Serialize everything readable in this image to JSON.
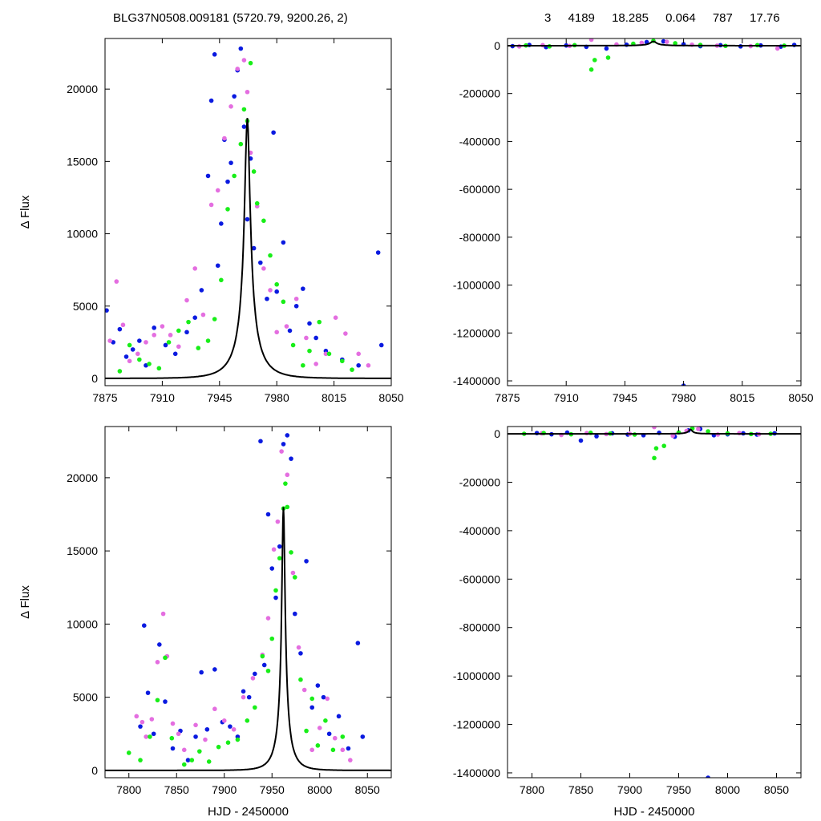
{
  "header": {
    "left": "BLG37N0508.009181 (5720.79, 9200.26,    2)",
    "right_values": [
      "3",
      "4189",
      "18.285",
      "0.064",
      "787",
      "17.76"
    ]
  },
  "colors": {
    "blue": "#0a1ae0",
    "green": "#18ee18",
    "magenta": "#e46ee0",
    "model": "#000000"
  },
  "model": {
    "t0": 7962,
    "amplitude": 18000,
    "tE": 15,
    "u0": 0.11
  },
  "chart_data": [
    {
      "type": "scatter",
      "panel": "top-left",
      "xlabel": "",
      "ylabel": "Δ Flux",
      "xlim": [
        7875,
        8050
      ],
      "ylim": [
        -500,
        23500
      ],
      "xticks": [
        "7875",
        "7910",
        "7945",
        "7980",
        "8015",
        "8050"
      ],
      "yticks": [
        "0",
        "5000",
        "10000",
        "15000",
        "20000"
      ],
      "series": [
        {
          "color": "blue",
          "x": [
            7876,
            7880,
            7884,
            7888,
            7892,
            7896,
            7900,
            7905,
            7912,
            7918,
            7925,
            7930,
            7934,
            7938,
            7940,
            7942,
            7944,
            7946,
            7948,
            7950,
            7952,
            7954,
            7956,
            7958,
            7960,
            7962,
            7964,
            7966,
            7970,
            7974,
            7978,
            7980,
            7984,
            7988,
            7992,
            7996,
            8000,
            8004,
            8010,
            8020,
            8030,
            8042,
            8044
          ],
          "y": [
            4700,
            2500,
            3400,
            1500,
            2000,
            2600,
            900,
            3500,
            2300,
            1700,
            3200,
            4200,
            6100,
            14000,
            19200,
            22400,
            7800,
            10700,
            16500,
            13600,
            14900,
            19500,
            21300,
            22800,
            17400,
            11000,
            15200,
            9000,
            8000,
            5500,
            17000,
            6000,
            9400,
            3300,
            5000,
            6200,
            3800,
            2800,
            1900,
            1300,
            900,
            8700,
            2300
          ]
        },
        {
          "color": "magenta",
          "x": [
            7878,
            7882,
            7886,
            7890,
            7895,
            7900,
            7905,
            7910,
            7915,
            7920,
            7925,
            7930,
            7935,
            7940,
            7944,
            7948,
            7952,
            7956,
            7960,
            7962,
            7964,
            7968,
            7972,
            7976,
            7980,
            7986,
            7992,
            7998,
            8004,
            8010,
            8016,
            8022,
            8030,
            8036
          ],
          "y": [
            2600,
            6700,
            3700,
            1200,
            1700,
            2500,
            3000,
            3600,
            3000,
            2200,
            5400,
            7600,
            4400,
            12000,
            13000,
            16600,
            18800,
            21400,
            22000,
            19800,
            15600,
            11900,
            7600,
            6100,
            3200,
            3600,
            5500,
            2800,
            1000,
            1700,
            4200,
            3100,
            1700,
            900
          ]
        },
        {
          "color": "green",
          "x": [
            7884,
            7890,
            7896,
            7902,
            7908,
            7914,
            7920,
            7926,
            7932,
            7938,
            7942,
            7946,
            7950,
            7954,
            7958,
            7960,
            7962,
            7964,
            7966,
            7968,
            7972,
            7976,
            7980,
            7984,
            7990,
            7996,
            8000,
            8006,
            8012,
            8020,
            8026
          ],
          "y": [
            500,
            2300,
            1300,
            1000,
            700,
            2500,
            3300,
            3900,
            2100,
            2600,
            4100,
            6800,
            11700,
            14000,
            16200,
            18600,
            17800,
            21800,
            14300,
            12100,
            10900,
            8500,
            6500,
            5300,
            2300,
            900,
            1900,
            3900,
            1700,
            1200,
            600
          ]
        }
      ]
    },
    {
      "type": "scatter",
      "panel": "top-right",
      "xlabel": "",
      "ylabel": "",
      "xlim": [
        7875,
        8050
      ],
      "ylim": [
        -1420000,
        30000
      ],
      "xticks": [
        "7875",
        "7910",
        "7945",
        "7980",
        "8015",
        "8050"
      ],
      "yticks": [
        "0",
        "-200000",
        "-400000",
        "-600000",
        "-800000",
        "-1000000",
        "-1200000",
        "-1400000"
      ],
      "series": [
        {
          "color": "blue",
          "x": [
            7878,
            7888,
            7898,
            7910,
            7922,
            7934,
            7946,
            7958,
            7968,
            7980,
            7990,
            8002,
            8014,
            8026,
            8038,
            8046,
            7980
          ],
          "y": [
            -2000,
            3000,
            -6000,
            1000,
            -5000,
            -12000,
            4000,
            15000,
            18000,
            6000,
            -2000,
            2000,
            -3000,
            1000,
            -4000,
            3000,
            -1420000
          ]
        },
        {
          "color": "magenta",
          "x": [
            7882,
            7896,
            7912,
            7925,
            7940,
            7955,
            7970,
            7985,
            8000,
            8020,
            8036
          ],
          "y": [
            -3000,
            2000,
            -1000,
            25000,
            5000,
            12000,
            16000,
            4000,
            0,
            -2000,
            -12000
          ]
        },
        {
          "color": "green",
          "x": [
            7886,
            7900,
            7915,
            7925,
            7927,
            7935,
            7950,
            7962,
            7975,
            7990,
            8005,
            8024,
            8040
          ],
          "y": [
            1000,
            -3000,
            2000,
            -100000,
            -60000,
            -50000,
            8000,
            20000,
            10000,
            3000,
            -1000,
            2000,
            0
          ]
        }
      ]
    },
    {
      "type": "scatter",
      "panel": "bottom-left",
      "xlabel": "HJD - 2450000",
      "ylabel": "Δ Flux",
      "xlim": [
        7775,
        8075
      ],
      "ylim": [
        -500,
        23500
      ],
      "xticks": [
        "7800",
        "7850",
        "7900",
        "7950",
        "8000",
        "8050"
      ],
      "yticks": [
        "0",
        "5000",
        "10000",
        "15000",
        "20000"
      ],
      "series": [
        {
          "color": "blue",
          "x": [
            7812,
            7816,
            7820,
            7826,
            7832,
            7838,
            7846,
            7854,
            7862,
            7870,
            7876,
            7882,
            7890,
            7898,
            7906,
            7914,
            7920,
            7926,
            7932,
            7938,
            7942,
            7946,
            7950,
            7954,
            7958,
            7962,
            7966,
            7970,
            7974,
            7980,
            7986,
            7992,
            7998,
            8004,
            8010,
            8020,
            8030,
            8040,
            8045
          ],
          "y": [
            3000,
            9900,
            5300,
            2500,
            8600,
            4700,
            1500,
            2700,
            700,
            2300,
            6700,
            2800,
            6900,
            3300,
            3000,
            2300,
            5400,
            5000,
            6600,
            22500,
            7200,
            17500,
            13800,
            11800,
            15300,
            22300,
            22900,
            21300,
            10700,
            8000,
            14300,
            4300,
            5800,
            5000,
            2500,
            3700,
            1500,
            8700,
            2300
          ]
        },
        {
          "color": "magenta",
          "x": [
            7808,
            7814,
            7818,
            7824,
            7830,
            7836,
            7840,
            7846,
            7852,
            7858,
            7870,
            7880,
            7890,
            7900,
            7910,
            7920,
            7930,
            7940,
            7946,
            7952,
            7956,
            7960,
            7966,
            7972,
            7978,
            7984,
            7992,
            8000,
            8008,
            8016,
            8024,
            8032
          ],
          "y": [
            3700,
            3300,
            2300,
            3500,
            7400,
            10700,
            7800,
            3200,
            2500,
            1400,
            3100,
            2100,
            4200,
            3400,
            2800,
            5000,
            6300,
            7900,
            10400,
            15100,
            17000,
            21800,
            20200,
            13500,
            8400,
            5500,
            1400,
            2900,
            4900,
            2200,
            1400,
            700
          ]
        },
        {
          "color": "green",
          "x": [
            7800,
            7812,
            7822,
            7830,
            7838,
            7845,
            7858,
            7866,
            7874,
            7884,
            7894,
            7904,
            7914,
            7924,
            7932,
            7940,
            7946,
            7950,
            7954,
            7958,
            7962,
            7964,
            7966,
            7970,
            7974,
            7980,
            7986,
            7992,
            7998,
            8006,
            8014,
            8024
          ],
          "y": [
            1200,
            700,
            2300,
            4800,
            7700,
            2200,
            400,
            700,
            1300,
            600,
            1600,
            1900,
            2100,
            3400,
            4300,
            7800,
            6800,
            9000,
            12300,
            14500,
            17900,
            19600,
            18000,
            14900,
            13200,
            6200,
            2700,
            4900,
            1700,
            3400,
            1400,
            2300
          ]
        }
      ]
    },
    {
      "type": "scatter",
      "panel": "bottom-right",
      "xlabel": "HJD - 2450000",
      "ylabel": "",
      "xlim": [
        7775,
        8075
      ],
      "ylim": [
        -1420000,
        30000
      ],
      "xticks": [
        "7800",
        "7850",
        "7900",
        "7950",
        "8000",
        "8050"
      ],
      "yticks": [
        "0",
        "-200000",
        "-400000",
        "-600000",
        "-800000",
        "-1000000",
        "-1200000",
        "-1400000"
      ],
      "series": [
        {
          "color": "blue",
          "x": [
            7805,
            7820,
            7836,
            7850,
            7866,
            7882,
            7898,
            7914,
            7930,
            7946,
            7960,
            7972,
            7986,
            8000,
            8016,
            8030,
            8048,
            7980
          ],
          "y": [
            3000,
            -2000,
            5000,
            -28000,
            -10000,
            2000,
            -3000,
            -6000,
            4000,
            -12000,
            14000,
            20000,
            -6000,
            -2000,
            2000,
            -3000,
            2000,
            -1420000
          ]
        },
        {
          "color": "magenta",
          "x": [
            7810,
            7830,
            7856,
            7876,
            7900,
            7925,
            7944,
            7958,
            7970,
            7990,
            8012,
            8032
          ],
          "y": [
            2000,
            -5000,
            3000,
            -1000,
            0,
            28000,
            -8000,
            12000,
            20000,
            -3000,
            3000,
            -2000
          ]
        },
        {
          "color": "green",
          "x": [
            7792,
            7812,
            7840,
            7860,
            7880,
            7905,
            7925,
            7927,
            7935,
            7950,
            7964,
            7980,
            8000,
            8024,
            8044
          ],
          "y": [
            0,
            3000,
            -2000,
            4000,
            1000,
            -3000,
            -100000,
            -60000,
            -50000,
            6000,
            22000,
            10000,
            2000,
            -1000,
            0
          ]
        }
      ]
    }
  ]
}
